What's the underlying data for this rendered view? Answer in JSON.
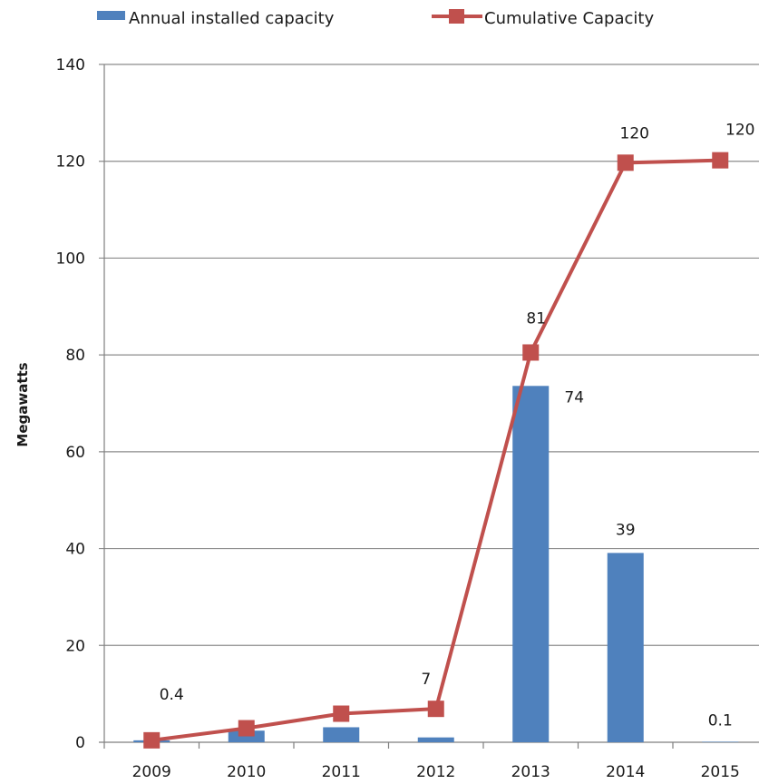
{
  "chart_data": {
    "type": "bar",
    "categories": [
      "2009",
      "2010",
      "2011",
      "2012",
      "2013",
      "2014",
      "2015"
    ],
    "series": [
      {
        "name": "Annual installed capacity",
        "kind": "bar",
        "color": "#4f81bd",
        "values": [
          0.4,
          2.4,
          3.1,
          1.0,
          73.6,
          39.1,
          0.1
        ],
        "labels": [
          "0.4",
          "",
          "",
          "",
          "74",
          "39",
          "0.1"
        ]
      },
      {
        "name": "Cumulative Capacity",
        "kind": "line",
        "color": "#c0504d",
        "values": [
          0.4,
          2.9,
          5.9,
          6.9,
          80.5,
          119.7,
          120.2
        ],
        "labels": [
          "",
          "",
          "",
          "7",
          "81",
          "120",
          "120"
        ]
      }
    ],
    "title": "",
    "xlabel": "",
    "ylabel": "Megawatts",
    "ylim": [
      0,
      140
    ],
    "yticks": [
      0,
      20,
      40,
      60,
      80,
      100,
      120,
      140
    ],
    "grid": true,
    "legend": "top-left"
  }
}
